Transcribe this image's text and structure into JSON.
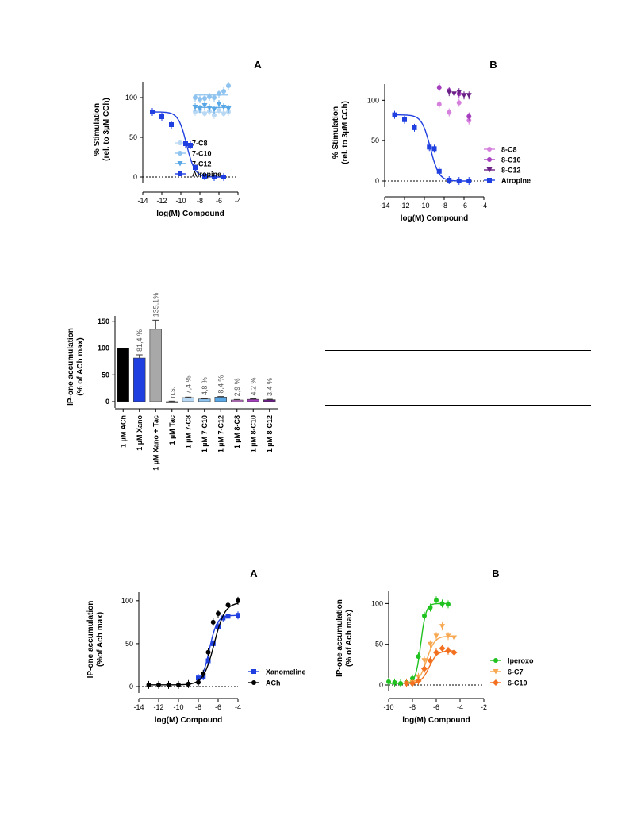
{
  "chart_data": [
    {
      "id": "A1",
      "type": "scatter",
      "panel_label": "A",
      "xlabel": "log(M) Compound",
      "ylabel": [
        "% Stimulation",
        "(rel. to 3µM CCh)"
      ],
      "xlim": [
        -14,
        -4
      ],
      "ylim": [
        0,
        120
      ],
      "xticks": [
        "-14",
        "-12",
        "-10",
        "-8",
        "-6",
        "-4"
      ],
      "yticks": [
        "0",
        "50",
        "100"
      ],
      "reference_line_y": 0,
      "legend_position": "right",
      "series": [
        {
          "name": "7-C8",
          "color": "#b9d8f3",
          "marker": "circle",
          "x": [
            -8.5,
            -8.0,
            -7.5,
            -7.0,
            -6.5,
            -6.0,
            -5.5,
            -5.0
          ],
          "y": [
            82,
            85,
            80,
            83,
            78,
            84,
            80,
            82
          ],
          "fit": "flat"
        },
        {
          "name": "7-C10",
          "color": "#8ec3ef",
          "marker": "circle",
          "x": [
            -8.5,
            -8.0,
            -7.5,
            -7.0,
            -6.5,
            -6.0,
            -5.5,
            -5.0
          ],
          "y": [
            100,
            98,
            99,
            101,
            100,
            105,
            108,
            115
          ],
          "fit": "flat"
        },
        {
          "name": "7-C12",
          "color": "#5aa7e6",
          "marker": "triangle-down",
          "x": [
            -8.5,
            -8.0,
            -7.5,
            -7.0,
            -6.5,
            -6.0,
            -5.5,
            -5.0
          ],
          "y": [
            88,
            86,
            90,
            87,
            85,
            92,
            88,
            86
          ],
          "fit": "flat"
        },
        {
          "name": "Atropine",
          "color": "#1f3fe0",
          "marker": "square",
          "x": [
            -13.0,
            -12.0,
            -11.0,
            -9.5,
            -9.0,
            -8.5,
            -7.5,
            -6.5,
            -5.5
          ],
          "y": [
            82,
            76,
            66,
            42,
            40,
            12,
            1,
            0,
            0
          ],
          "fit": "sigmoid-down"
        }
      ]
    },
    {
      "id": "B1",
      "type": "scatter",
      "panel_label": "B",
      "xlabel": "log(M) Compound",
      "ylabel": [
        "% Stimulation",
        "(rel. to 3µM CCh)"
      ],
      "xlim": [
        -14,
        -4
      ],
      "ylim": [
        0,
        120
      ],
      "xticks": [
        "-14",
        "-12",
        "-10",
        "-8",
        "-6",
        "-4"
      ],
      "yticks": [
        "0",
        "50",
        "100"
      ],
      "reference_line_y": 0,
      "legend_position": "right",
      "series": [
        {
          "name": "8-C8",
          "color": "#d680de",
          "marker": "circle",
          "x": [
            -8.5,
            -7.5,
            -6.5,
            -5.5
          ],
          "y": [
            95,
            85,
            97,
            75
          ],
          "fit": "none"
        },
        {
          "name": "8-C10",
          "color": "#a63fbf",
          "marker": "circle",
          "x": [
            -8.5,
            -7.5,
            -6.5,
            -5.5
          ],
          "y": [
            116,
            112,
            108,
            80
          ],
          "fit": "none"
        },
        {
          "name": "8-C12",
          "color": "#6a1f86",
          "marker": "triangle-down",
          "x": [
            -7.5,
            -7.0,
            -6.5,
            -6.0,
            -5.5
          ],
          "y": [
            110,
            108,
            110,
            106,
            106
          ],
          "fit": "none"
        },
        {
          "name": "Atropine",
          "color": "#1f3fe0",
          "marker": "square",
          "x": [
            -13.0,
            -12.0,
            -11.0,
            -9.5,
            -9.0,
            -8.5,
            -7.5,
            -6.5,
            -5.5
          ],
          "y": [
            82,
            76,
            66,
            42,
            40,
            12,
            1,
            0,
            0
          ],
          "fit": "sigmoid-down"
        }
      ]
    },
    {
      "id": "C1",
      "type": "bar",
      "ylabel": [
        "IP-one accumulation",
        "(% of ACh max)"
      ],
      "ylim": [
        0,
        160
      ],
      "yticks": [
        "0",
        "50",
        "100",
        "150"
      ],
      "categories": [
        "1 µM ACh",
        "1 µM Xano",
        "1 µM Xano + Tac",
        "1 µM Tac",
        "1 µM 7-C8",
        "1 µM 7-C10",
        "1 µM 7-C12",
        "1 µM 8-C8",
        "1 µM 8-C10",
        "1 µM 8-C12"
      ],
      "values": [
        100,
        81.4,
        135.1,
        -1,
        7.4,
        4.8,
        8.4,
        2.9,
        4.2,
        3.4
      ],
      "errors": [
        0,
        6,
        17,
        1,
        1,
        1,
        1,
        1,
        1,
        1
      ],
      "data_labels": [
        "",
        "81,4 %",
        "135,1%",
        "n.s.",
        "7,4 %",
        "4,8 %",
        "8,4 %",
        "2,9 %",
        "4,2 %",
        "3,4 %"
      ],
      "colors": [
        "#000000",
        "#1f3fe0",
        "#a8a8a8",
        "#888888",
        "#b9d8f3",
        "#8ec3ef",
        "#5aa7e6",
        "#d680de",
        "#a63fbf",
        "#6a1f86"
      ]
    },
    {
      "id": "A2",
      "type": "scatter",
      "panel_label": "A",
      "xlabel": "log(M) Compound",
      "ylabel": [
        "IP-one accumulation",
        "(%of Ach max)"
      ],
      "xlim": [
        -14,
        -4
      ],
      "ylim": [
        0,
        110
      ],
      "xticks": [
        "-14",
        "-12",
        "-10",
        "-8",
        "-6",
        "-4"
      ],
      "yticks": [
        "0",
        "50",
        "100"
      ],
      "reference_line_y": 0,
      "legend_position": "right",
      "series": [
        {
          "name": "Xanomeline",
          "color": "#1f3fe0",
          "marker": "square",
          "x": [
            -8.0,
            -7.5,
            -7.0,
            -6.5,
            -6.0,
            -5.5,
            -5.0,
            -4.0
          ],
          "y": [
            10,
            12,
            30,
            50,
            70,
            80,
            82,
            83
          ],
          "fit": "sigmoid-up-x"
        },
        {
          "name": "ACh",
          "color": "#000000",
          "marker": "circle",
          "x": [
            -13.0,
            -12.0,
            -11.0,
            -10.0,
            -9.0,
            -8.0,
            -7.5,
            -7.0,
            -6.5,
            -6.0,
            -5.0,
            -4.0
          ],
          "y": [
            2,
            2,
            2,
            2,
            3,
            5,
            15,
            40,
            75,
            85,
            95,
            100
          ],
          "fit": "sigmoid-up-a"
        }
      ]
    },
    {
      "id": "B2",
      "type": "scatter",
      "panel_label": "B",
      "xlabel": "log(M) Compound",
      "ylabel": [
        "IP-one accumulation",
        "(% of Ach max)"
      ],
      "xlim": [
        -10,
        -2
      ],
      "ylim": [
        0,
        115
      ],
      "xticks": [
        "-10",
        "-8",
        "-6",
        "-4",
        "-2"
      ],
      "yticks": [
        "0",
        "50",
        "100"
      ],
      "reference_line_y": 0,
      "legend_position": "right",
      "series": [
        {
          "name": "Iperoxo",
          "color": "#1fc21f",
          "marker": "circle",
          "x": [
            -10.0,
            -9.5,
            -9.0,
            -8.5,
            -8.0,
            -7.5,
            -7.0,
            -6.5,
            -6.0,
            -5.5,
            -5.0
          ],
          "y": [
            4,
            3,
            2,
            3,
            8,
            35,
            85,
            95,
            104,
            100,
            99
          ],
          "fit": "sigmoid-up-i"
        },
        {
          "name": "6-C7",
          "color": "#f7a850",
          "marker": "triangle-down",
          "x": [
            -8.5,
            -8.0,
            -7.5,
            -7.0,
            -6.5,
            -6.0,
            -5.5,
            -5.0,
            -4.5
          ],
          "y": [
            2,
            3,
            10,
            30,
            50,
            60,
            72,
            60,
            58
          ],
          "fit": "sigmoid-up-c7"
        },
        {
          "name": "6-C10",
          "color": "#f2701f",
          "marker": "diamond",
          "x": [
            -8.5,
            -8.0,
            -7.5,
            -7.0,
            -6.5,
            -6.0,
            -5.5,
            -5.0,
            -4.5
          ],
          "y": [
            2,
            2,
            5,
            20,
            30,
            40,
            45,
            42,
            40
          ],
          "fit": "sigmoid-up-c10"
        }
      ]
    }
  ]
}
